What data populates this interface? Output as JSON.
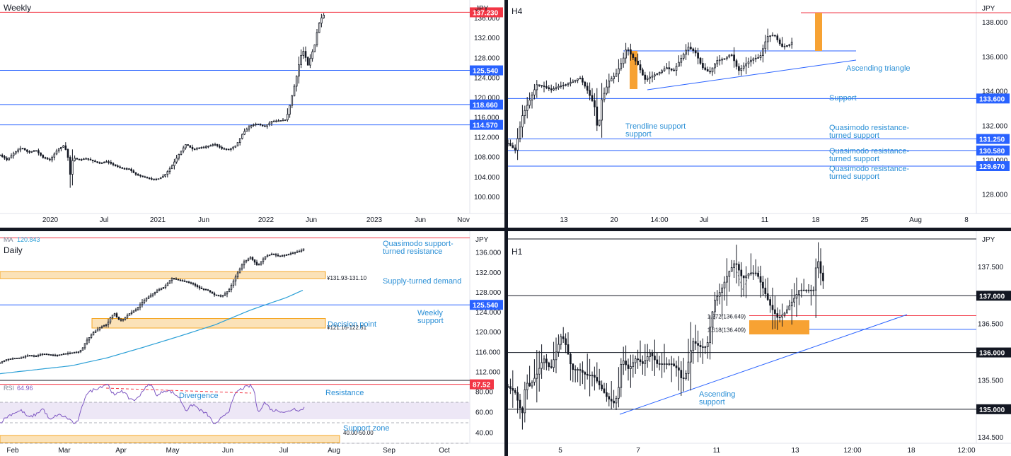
{
  "colors": {
    "accent": "#2962ff",
    "resistance": "#f23645",
    "zone_fill": "#fbe2b8",
    "zone_stroke": "#f5a623",
    "rr_box": "#f7a233",
    "rsi_line": "#7e57c2",
    "rsi_band": "#ede7f6",
    "ma_line": "#2a9fd6",
    "annotation": "#2a8fd6"
  },
  "chart_data": [
    {
      "id": "weekly",
      "type": "candlestick",
      "title": "Weekly",
      "currency": "JPY",
      "y_ticks": [
        "100.000",
        "104.000",
        "108.000",
        "112.000",
        "116.000",
        "120.000",
        "124.000",
        "128.000",
        "132.000",
        "136.000"
      ],
      "x_ticks": [
        "2020",
        "Jul",
        "2021",
        "Jun",
        "2022",
        "Jun",
        "2023",
        "Jun",
        "Nov"
      ],
      "ylim": [
        97,
        139
      ],
      "levels": [
        {
          "price": 137.23,
          "label": "137.230",
          "color": "#f23645"
        },
        {
          "price": 125.54,
          "label": "125.540",
          "color": "#2962ff"
        },
        {
          "price": 118.66,
          "label": "118.660",
          "color": "#2962ff"
        },
        {
          "price": 114.57,
          "label": "114.570",
          "color": "#2962ff"
        }
      ],
      "price_path": [
        [
          0,
          108.5
        ],
        [
          10,
          107.5
        ],
        [
          20,
          109
        ],
        [
          30,
          110
        ],
        [
          40,
          109
        ],
        [
          50,
          109.5
        ],
        [
          60,
          108
        ],
        [
          70,
          107.5
        ],
        [
          80,
          109.5
        ],
        [
          90,
          110.5
        ],
        [
          95,
          108
        ],
        [
          98,
          104.5
        ],
        [
          102,
          108
        ],
        [
          110,
          107.5
        ],
        [
          120,
          107.8
        ],
        [
          130,
          107.3
        ],
        [
          140,
          106.8
        ],
        [
          150,
          107.2
        ],
        [
          160,
          106.4
        ],
        [
          170,
          105.8
        ],
        [
          180,
          105.7
        ],
        [
          190,
          104.6
        ],
        [
          200,
          104.1
        ],
        [
          210,
          103.7
        ],
        [
          220,
          103.6
        ],
        [
          230,
          104.4
        ],
        [
          240,
          106.2
        ],
        [
          250,
          108.6
        ],
        [
          260,
          110.7
        ],
        [
          270,
          109.6
        ],
        [
          280,
          110
        ],
        [
          290,
          110.2
        ],
        [
          300,
          110.7
        ],
        [
          310,
          109.8
        ],
        [
          320,
          109.6
        ],
        [
          330,
          110.4
        ],
        [
          340,
          113
        ],
        [
          350,
          114.4
        ],
        [
          360,
          114.8
        ],
        [
          370,
          114.2
        ],
        [
          380,
          115.3
        ],
        [
          390,
          115.4
        ],
        [
          400,
          115.6
        ],
        [
          405,
          118.4
        ],
        [
          410,
          121.4
        ],
        [
          415,
          124.6
        ],
        [
          420,
          128.3
        ],
        [
          425,
          129.6
        ],
        [
          430,
          126.4
        ],
        [
          435,
          128.5
        ],
        [
          440,
          130.7
        ],
        [
          445,
          134.6
        ],
        [
          450,
          136.3
        ],
        [
          455,
          137
        ]
      ]
    },
    {
      "id": "h4",
      "type": "candlestick",
      "title": "H4",
      "currency": "JPY",
      "y_ticks": [
        "128.000",
        "130.000",
        "132.000",
        "134.000",
        "136.000",
        "138.000"
      ],
      "x_ticks": [
        "13",
        "20",
        "14:00",
        "Jul",
        "11",
        "18",
        "25",
        "Aug",
        "8"
      ],
      "ylim": [
        127,
        139.2
      ],
      "levels": [
        {
          "price": 133.6,
          "label": "133.600",
          "color": "#2962ff"
        },
        {
          "price": 131.25,
          "label": "131.250",
          "color": "#2962ff"
        },
        {
          "price": 130.58,
          "label": "130.580",
          "color": "#2962ff"
        },
        {
          "price": 129.67,
          "label": "129.670",
          "color": "#2962ff"
        }
      ],
      "top_level": {
        "price": 139,
        "color": "#f23645"
      },
      "annotations": [
        "Ascending triangle",
        "Support",
        "Trendline support",
        "Quasimodo resistance-",
        "turned support",
        "Quasimodo resistance-",
        "turned support",
        "Quasimodo resistance-",
        "turned support"
      ],
      "price_path": [
        [
          0,
          131
        ],
        [
          10,
          130.6
        ],
        [
          20,
          132.6
        ],
        [
          30,
          133.5
        ],
        [
          40,
          134.4
        ],
        [
          50,
          134.3
        ],
        [
          60,
          134.1
        ],
        [
          70,
          134.3
        ],
        [
          80,
          134.4
        ],
        [
          90,
          134.6
        ],
        [
          100,
          134.8
        ],
        [
          110,
          134.1
        ],
        [
          120,
          133.2
        ],
        [
          125,
          131.6
        ],
        [
          130,
          133.5
        ],
        [
          140,
          134.6
        ],
        [
          150,
          135
        ],
        [
          160,
          135.9
        ],
        [
          165,
          136.6
        ],
        [
          170,
          136.2
        ],
        [
          180,
          135.6
        ],
        [
          190,
          134.7
        ],
        [
          200,
          134.9
        ],
        [
          210,
          135.1
        ],
        [
          220,
          135.4
        ],
        [
          230,
          135.2
        ],
        [
          240,
          135.9
        ],
        [
          250,
          136.6
        ],
        [
          260,
          136.3
        ],
        [
          270,
          135.4
        ],
        [
          280,
          135.1
        ],
        [
          290,
          135.8
        ],
        [
          300,
          135.9
        ],
        [
          310,
          136.2
        ],
        [
          320,
          135.2
        ],
        [
          330,
          135.6
        ],
        [
          340,
          135.9
        ],
        [
          350,
          136
        ],
        [
          360,
          137.2
        ],
        [
          370,
          137.3
        ],
        [
          380,
          136.6
        ],
        [
          390,
          136.7
        ],
        [
          395,
          136.9
        ]
      ]
    },
    {
      "id": "daily",
      "type": "candlestick",
      "title": "Daily",
      "currency": "JPY",
      "ma_label": "MA",
      "ma_value": "120.843",
      "y_ticks": [
        "112.000",
        "116.000",
        "120.000",
        "124.000",
        "128.000",
        "132.000",
        "136.000"
      ],
      "x_ticks": [
        "Feb",
        "Mar",
        "Apr",
        "May",
        "Jun",
        "Jul",
        "Aug",
        "Sep",
        "Oct"
      ],
      "ylim": [
        110.5,
        139.5
      ],
      "levels": [
        {
          "price": 125.54,
          "label": "125.540",
          "color": "#2962ff"
        }
      ],
      "top_level": {
        "price": 139,
        "color": "#f23645"
      },
      "zones": [
        {
          "from": 131.1,
          "to": 131.93,
          "label": "¥131.93-131.10"
        },
        {
          "from": 121.16,
          "to": 122.51,
          "label": "¥121.16-122.51"
        }
      ],
      "annotations": [
        "Quasimodo support-",
        "turned resistance",
        "Supply-turned demand",
        "Decision point",
        "Weekly",
        "support"
      ],
      "price_path": [
        [
          0,
          113.9
        ],
        [
          10,
          114.6
        ],
        [
          20,
          114.8
        ],
        [
          30,
          114.9
        ],
        [
          40,
          115.4
        ],
        [
          50,
          115.2
        ],
        [
          60,
          115.7
        ],
        [
          70,
          115.5
        ],
        [
          80,
          115.4
        ],
        [
          90,
          115.7
        ],
        [
          100,
          115.9
        ],
        [
          110,
          116.1
        ],
        [
          115,
          116.7
        ],
        [
          120,
          118.2
        ],
        [
          130,
          119.9
        ],
        [
          140,
          121
        ],
        [
          150,
          121.7
        ],
        [
          155,
          123.2
        ],
        [
          160,
          123.8
        ],
        [
          165,
          122.6
        ],
        [
          170,
          122.4
        ],
        [
          180,
          123.7
        ],
        [
          190,
          124.6
        ],
        [
          200,
          126.3
        ],
        [
          210,
          127.4
        ],
        [
          220,
          128.4
        ],
        [
          230,
          129.2
        ],
        [
          240,
          130.9
        ],
        [
          250,
          130.5
        ],
        [
          260,
          130.2
        ],
        [
          270,
          129.7
        ],
        [
          280,
          128.8
        ],
        [
          290,
          128.5
        ],
        [
          300,
          127.5
        ],
        [
          310,
          127.3
        ],
        [
          315,
          127.8
        ],
        [
          320,
          128.6
        ],
        [
          330,
          131.4
        ],
        [
          340,
          134.1
        ],
        [
          350,
          135.1
        ],
        [
          360,
          133.4
        ],
        [
          370,
          135.2
        ],
        [
          380,
          135.8
        ],
        [
          390,
          135.3
        ],
        [
          400,
          135.6
        ],
        [
          410,
          136
        ],
        [
          420,
          136.4
        ],
        [
          425,
          136.9
        ]
      ],
      "ma_path": [
        [
          0,
          111.7
        ],
        [
          50,
          112.5
        ],
        [
          100,
          113.3
        ],
        [
          150,
          114.9
        ],
        [
          200,
          117
        ],
        [
          250,
          119.2
        ],
        [
          300,
          121.5
        ],
        [
          350,
          124.5
        ],
        [
          400,
          127
        ],
        [
          425,
          128.6
        ]
      ]
    },
    {
      "id": "rsi",
      "type": "line",
      "label": "RSI",
      "value": "64.96",
      "y_ticks": [
        "40.00",
        "60.00",
        "80.00"
      ],
      "ylim": [
        30,
        90
      ],
      "levels": [
        {
          "value": 87.52,
          "label": "87.52",
          "color": "#f23645"
        }
      ],
      "zones": [
        {
          "from": 40,
          "to": 50,
          "label": "40.00-50.00"
        }
      ],
      "annotations": [
        "Divergence",
        "Resistance",
        "Support zone"
      ],
      "values_path": [
        [
          0,
          50
        ],
        [
          10,
          56
        ],
        [
          20,
          60
        ],
        [
          30,
          62
        ],
        [
          40,
          55
        ],
        [
          50,
          58
        ],
        [
          60,
          64
        ],
        [
          70,
          52
        ],
        [
          80,
          58
        ],
        [
          90,
          56
        ],
        [
          100,
          52
        ],
        [
          105,
          48
        ],
        [
          110,
          54
        ],
        [
          120,
          78
        ],
        [
          130,
          82
        ],
        [
          140,
          85
        ],
        [
          150,
          88
        ],
        [
          160,
          76
        ],
        [
          170,
          82
        ],
        [
          180,
          74
        ],
        [
          190,
          72
        ],
        [
          200,
          82
        ],
        [
          210,
          88
        ],
        [
          220,
          76
        ],
        [
          230,
          82
        ],
        [
          240,
          80
        ],
        [
          250,
          75
        ],
        [
          260,
          62
        ],
        [
          270,
          68
        ],
        [
          280,
          62
        ],
        [
          290,
          58
        ],
        [
          300,
          48
        ],
        [
          305,
          50
        ],
        [
          310,
          56
        ],
        [
          320,
          62
        ],
        [
          330,
          80
        ],
        [
          340,
          84
        ],
        [
          350,
          86
        ],
        [
          355,
          82
        ],
        [
          360,
          60
        ],
        [
          370,
          70
        ],
        [
          380,
          62
        ],
        [
          390,
          62
        ],
        [
          400,
          60
        ],
        [
          410,
          64
        ],
        [
          420,
          62
        ],
        [
          425,
          65
        ]
      ]
    },
    {
      "id": "h1",
      "type": "candlestick",
      "title": "H1",
      "currency": "JPY",
      "y_ticks": [
        "134.500",
        "135.000",
        "135.500",
        "136.000",
        "136.500",
        "137.000",
        "137.500"
      ],
      "x_ticks": [
        "5",
        "7",
        "11",
        "13",
        "12:00",
        "18",
        "12:00"
      ],
      "ylim": [
        134.4,
        138.1
      ],
      "levels": [
        {
          "price": 137.0,
          "label": "137.000",
          "color": "#131722"
        },
        {
          "price": 136.0,
          "label": "136.000",
          "color": "#131722"
        },
        {
          "price": 135.0,
          "label": "135.000",
          "color": "#131722"
        }
      ],
      "top_level": {
        "price": 138,
        "color": "#131722"
      },
      "fib": [
        {
          "price": 136.649,
          "label": "1.272(136.649)",
          "color": "#f23645"
        },
        {
          "price": 136.409,
          "label": "1.618(136.409)",
          "color": "#2962ff"
        }
      ],
      "annotations": [
        "Ascending",
        "support"
      ],
      "price_path": [
        [
          0,
          135.4
        ],
        [
          10,
          135.3
        ],
        [
          20,
          134.9
        ],
        [
          25,
          135.5
        ],
        [
          30,
          135.4
        ],
        [
          40,
          135.6
        ],
        [
          50,
          135.9
        ],
        [
          60,
          135.7
        ],
        [
          70,
          136.1
        ],
        [
          75,
          136.3
        ],
        [
          80,
          136.2
        ],
        [
          90,
          135.7
        ],
        [
          100,
          135.7
        ],
        [
          110,
          135.6
        ],
        [
          120,
          135.6
        ],
        [
          130,
          135.4
        ],
        [
          140,
          135.2
        ],
        [
          150,
          135.1
        ],
        [
          155,
          135.3
        ],
        [
          160,
          135.9
        ],
        [
          170,
          135.7
        ],
        [
          180,
          135.9
        ],
        [
          190,
          135.8
        ],
        [
          200,
          136
        ],
        [
          210,
          135.8
        ],
        [
          220,
          135.8
        ],
        [
          230,
          135.8
        ],
        [
          240,
          135.7
        ],
        [
          245,
          135.5
        ],
        [
          250,
          135.6
        ],
        [
          260,
          136.2
        ],
        [
          270,
          136.1
        ],
        [
          280,
          136.1
        ],
        [
          290,
          136.9
        ],
        [
          300,
          137.1
        ],
        [
          310,
          137.4
        ],
        [
          320,
          137.6
        ],
        [
          330,
          137.3
        ],
        [
          340,
          137.4
        ],
        [
          350,
          137.4
        ],
        [
          360,
          137.1
        ],
        [
          370,
          136.8
        ],
        [
          380,
          136.6
        ],
        [
          390,
          136.7
        ],
        [
          400,
          136.9
        ],
        [
          410,
          137.1
        ],
        [
          420,
          137.1
        ],
        [
          430,
          137.1
        ],
        [
          435,
          137.7
        ],
        [
          440,
          137.4
        ],
        [
          445,
          137.2
        ]
      ]
    }
  ]
}
